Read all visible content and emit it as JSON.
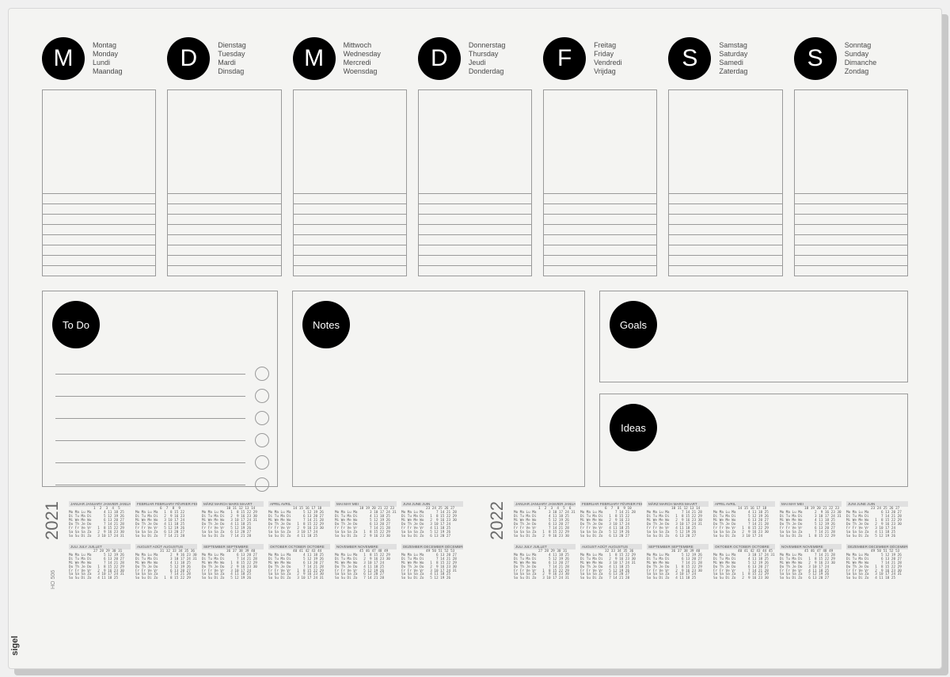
{
  "colors": {
    "paper_bg": "#f4f4f2",
    "circle_bg": "#000000",
    "circle_fg": "#ffffff",
    "border": "#9a9a9a",
    "text_muted": "#4a4a4a",
    "cal_header_bg": "#e0e0e0"
  },
  "days": [
    {
      "letter": "M",
      "names": [
        "Montag",
        "Monday",
        "Lundi",
        "Maandag"
      ]
    },
    {
      "letter": "D",
      "names": [
        "Dienstag",
        "Tuesday",
        "Mardi",
        "Dinsdag"
      ]
    },
    {
      "letter": "M",
      "names": [
        "Mittwoch",
        "Wednesday",
        "Mercredi",
        "Woensdag"
      ]
    },
    {
      "letter": "D",
      "names": [
        "Donnerstag",
        "Thursday",
        "Jeudi",
        "Donderdag"
      ]
    },
    {
      "letter": "F",
      "names": [
        "Freitag",
        "Friday",
        "Vendredi",
        "Vrijdag"
      ]
    },
    {
      "letter": "S",
      "names": [
        "Samstag",
        "Saturday",
        "Samedi",
        "Zaterdag"
      ]
    },
    {
      "letter": "S",
      "names": [
        "Sonntag",
        "Sunday",
        "Dimanche",
        "Zondag"
      ]
    }
  ],
  "day_box": {
    "rule_lines": 8
  },
  "sections": {
    "todo": {
      "label": "To Do",
      "lines": 6
    },
    "notes": {
      "label": "Notes"
    },
    "goals": {
      "label": "Goals"
    },
    "ideas": {
      "label": "Ideas"
    }
  },
  "brand": "sigel",
  "product_code": "HO 506",
  "calendars": [
    {
      "year": "2021",
      "months": [
        "JANUAR JANUARY JANVIER JANUARI",
        "FEBRUAR FEBRUARY FÉVRIER FEBRUARI",
        "MÄRZ MARCH MARS MAART",
        "APRIL AVRIL",
        "MAI MAY MEI",
        "JUNI JUNE JUIN",
        "JULI JULY JUILLET",
        "AUGUST AOÛT AUGUSTUS",
        "SEPTEMBER SEPTEMBRE",
        "OKTOBER OCTOBER OCTOBRE",
        "NOVEMBER NOVEMBRE",
        "DEZEMBER DECEMBER DÉCEMBRE"
      ]
    },
    {
      "year": "2022",
      "months": [
        "JANUAR JANUARY JANVIER JANUARI",
        "FEBRUAR FEBRUARY FÉVRIER FEBRUARI",
        "MÄRZ MARCH MARS MAART",
        "APRIL AVRIL",
        "MAI MAY MEI",
        "JUNI JUNE JUIN",
        "JULI JULY JUILLET",
        "AUGUST AOÛT AUGUSTUS",
        "SEPTEMBER SEPTEMBRE",
        "OKTOBER OCTOBER OCTOBRE",
        "NOVEMBER NOVEMBRE",
        "DEZEMBER DECEMBER DÉCEMBRE"
      ]
    }
  ],
  "cal_row_labels": [
    "Mo Ma Lu Ma",
    "Di Tu Ma Di",
    "Mi We Me Wo",
    "Do Th Je Do",
    "Fr Fr Ve Vr",
    "Sa Sa Sa Za",
    "So Su Di Zo"
  ]
}
